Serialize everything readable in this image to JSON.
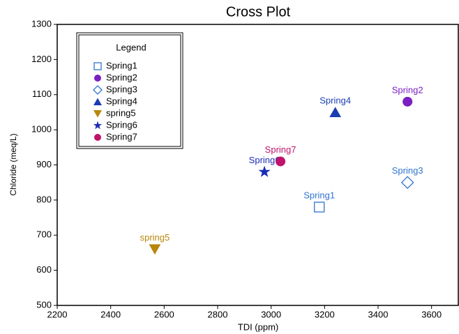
{
  "chart_data": {
    "type": "scatter",
    "title": "Cross Plot",
    "x_label": "TDI (ppm)",
    "y_label": "Chloride (meq/L)",
    "legend_title": "Legend",
    "legend": "upper left",
    "grid": false,
    "xlim": [
      2200,
      3700
    ],
    "xticks": [
      2200,
      2400,
      2600,
      2800,
      3000,
      3200,
      3400,
      3600
    ],
    "ylim": [
      500,
      1300
    ],
    "yticks": [
      500,
      600,
      700,
      800,
      900,
      1000,
      1100,
      1200,
      1300
    ],
    "series": [
      {
        "name": "Spring1",
        "color": "#2f74cf",
        "marker": "square-open",
        "x": [
          3180
        ],
        "values": [
          780
        ]
      },
      {
        "name": "Spring2",
        "color": "#7a1fc2",
        "marker": "circle",
        "x": [
          3510
        ],
        "values": [
          1080
        ]
      },
      {
        "name": "Spring3",
        "color": "#2f74cf",
        "marker": "diamond-open",
        "x": [
          3510
        ],
        "values": [
          850
        ]
      },
      {
        "name": "Spring4",
        "color": "#1b3db3",
        "marker": "triangle-up",
        "x": [
          3240
        ],
        "values": [
          1050
        ]
      },
      {
        "name": "spring5",
        "color": "#b8860b",
        "marker": "triangle-down",
        "x": [
          2565
        ],
        "values": [
          660
        ]
      },
      {
        "name": "Spring6",
        "color": "#1a2bb8",
        "marker": "star",
        "x": [
          2975
        ],
        "values": [
          880
        ]
      },
      {
        "name": "Spring7",
        "color": "#c0136b",
        "marker": "circle",
        "x": [
          3035
        ],
        "values": [
          910
        ]
      }
    ]
  }
}
